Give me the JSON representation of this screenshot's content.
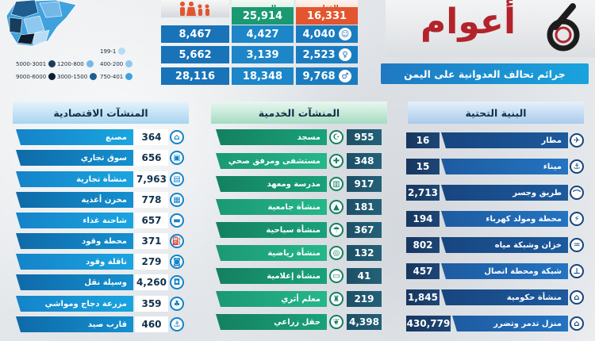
{
  "title": {
    "word": "أعوام",
    "numeral": "6",
    "subtitle": "جرائم تحالف العدوانية على اليمن"
  },
  "map": {
    "legend": [
      {
        "label": "199-1",
        "color": "#b7dcf3"
      },
      {
        "label": "400-200",
        "color": "#8ec8ef"
      },
      {
        "label": "750-401",
        "color": "#3fa2de"
      },
      {
        "label": "1200-800",
        "color": "#74b8e8"
      },
      {
        "label": "3000-1500",
        "color": "#1d5d8f"
      },
      {
        "label": "5000-3001",
        "color": "#173d5c"
      },
      {
        "label": "9000-6000",
        "color": "#0c1e30"
      }
    ]
  },
  "casualties": {
    "headers": {
      "killed": "القتلى",
      "injured": "الجرحى"
    },
    "rows": [
      {
        "icon": "child-icon",
        "killed": "4,040",
        "injured": "4,427",
        "total": "8,467"
      },
      {
        "icon": "woman-icon",
        "killed": "2,523",
        "injured": "3,139",
        "total": "5,662"
      },
      {
        "icon": "man-icon",
        "killed": "9,768",
        "injured": "18,348",
        "total": "28,116"
      }
    ],
    "totals": {
      "killed": "16,331",
      "injured": "25,914"
    }
  },
  "columns": {
    "economic": {
      "title": "المنشآت الاقتصادية",
      "items": [
        {
          "label": "مصنع",
          "value": "364",
          "icon": "factory-icon"
        },
        {
          "label": "سوق تجاري",
          "value": "656",
          "icon": "market-icon"
        },
        {
          "label": "منشأة تجارية",
          "value": "7,963",
          "icon": "shop-icon"
        },
        {
          "label": "مخزن أغذية",
          "value": "778",
          "icon": "warehouse-icon"
        },
        {
          "label": "شاحنة غذاء",
          "value": "657",
          "icon": "truck-icon"
        },
        {
          "label": "محطة وقود",
          "value": "371",
          "icon": "fuel-station-icon"
        },
        {
          "label": "ناقلة وقود",
          "value": "279",
          "icon": "tanker-icon"
        },
        {
          "label": "وسيلة نقل",
          "value": "4,260",
          "icon": "car-icon"
        },
        {
          "label": "مزرعة دجاج ومواشي",
          "value": "359",
          "icon": "farm-icon"
        },
        {
          "label": "قارب صيد",
          "value": "460",
          "icon": "boat-icon"
        }
      ]
    },
    "services": {
      "title": "المنشآت الخدمية",
      "items": [
        {
          "label": "مسجد",
          "value": "955",
          "icon": "mosque-icon"
        },
        {
          "label": "مستشفى ومرفق صحي",
          "value": "348",
          "icon": "hospital-icon"
        },
        {
          "label": "مدرسة ومعهد",
          "value": "917",
          "icon": "school-icon"
        },
        {
          "label": "منشأة جامعية",
          "value": "181",
          "icon": "university-icon"
        },
        {
          "label": "منشأة سياحية",
          "value": "367",
          "icon": "tourism-icon"
        },
        {
          "label": "منشأة رياضية",
          "value": "132",
          "icon": "sports-icon"
        },
        {
          "label": "منشأة إعلامية",
          "value": "41",
          "icon": "media-icon"
        },
        {
          "label": "معلم أثري",
          "value": "219",
          "icon": "monument-icon"
        },
        {
          "label": "حقل زراعي",
          "value": "4,398",
          "icon": "field-icon"
        }
      ]
    },
    "infrastructure": {
      "title": "البنية التحتية",
      "items": [
        {
          "label": "مطار",
          "value": "16",
          "icon": "airplane-icon"
        },
        {
          "label": "ميناء",
          "value": "15",
          "icon": "anchor-icon"
        },
        {
          "label": "طريق وجسر",
          "value": "2,713",
          "icon": "bridge-icon"
        },
        {
          "label": "محطة ومولد كهرباء",
          "value": "194",
          "icon": "power-icon"
        },
        {
          "label": "خزان وشبكة مياه",
          "value": "802",
          "icon": "water-icon"
        },
        {
          "label": "شبكة ومحطة اتصال",
          "value": "457",
          "icon": "tower-icon"
        },
        {
          "label": "منشأة حكومية",
          "value": "1,845",
          "icon": "government-icon"
        },
        {
          "label": "منزل تدمر وتضرر",
          "value": "430,779",
          "icon": "house-icon"
        }
      ]
    }
  }
}
